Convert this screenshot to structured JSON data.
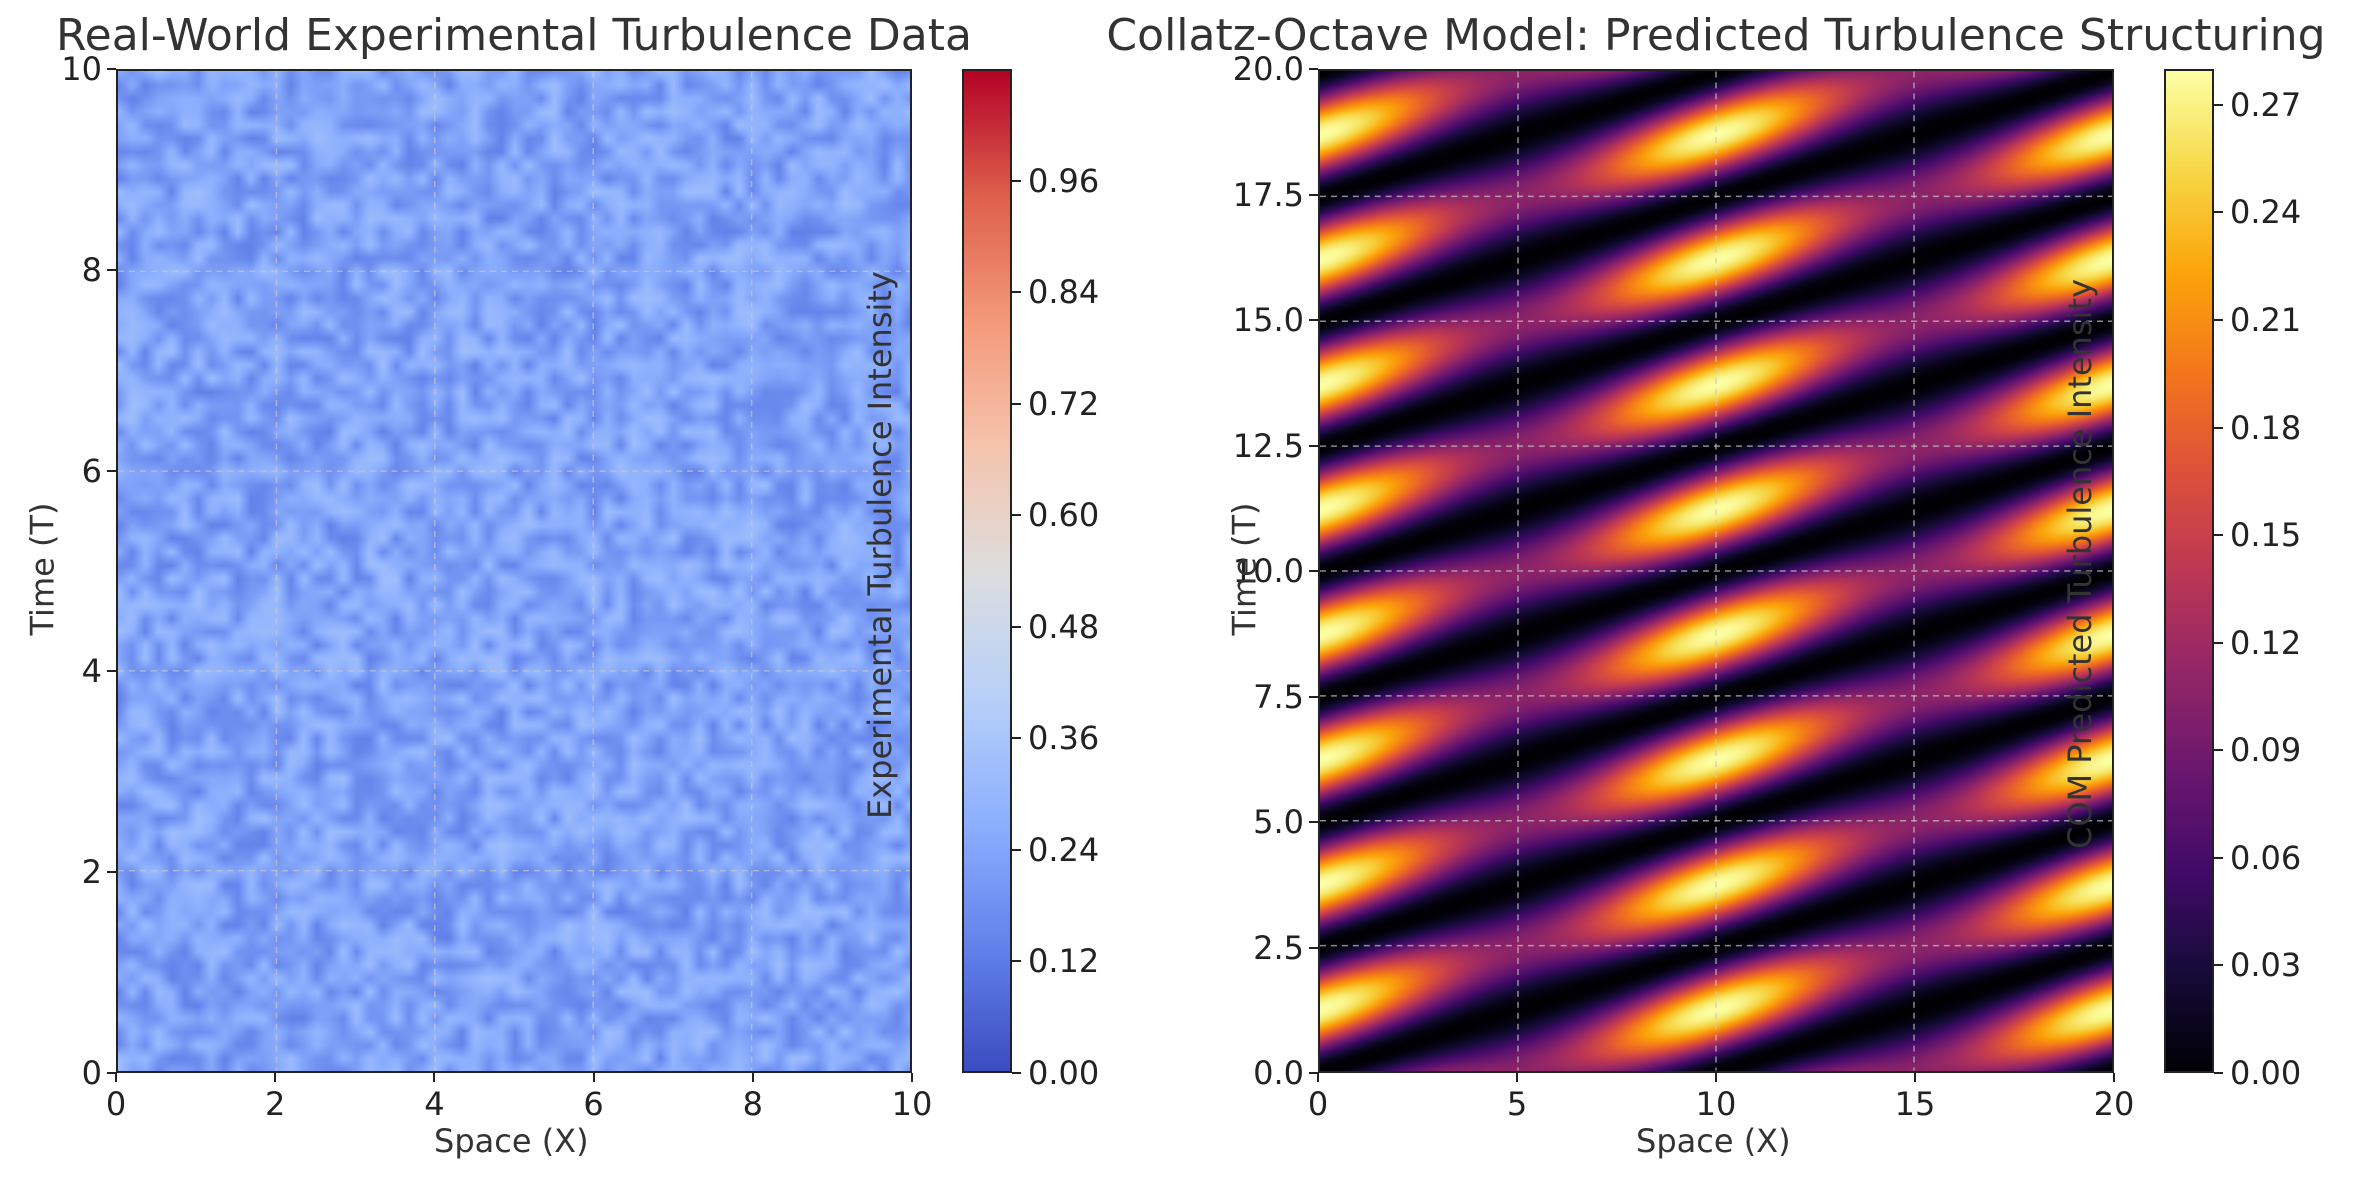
{
  "chart_data": [
    {
      "type": "heatmap",
      "title": "Real-World Experimental Turbulence Data",
      "xlabel": "Space (X)",
      "ylabel": "Time (T)",
      "xlim": [
        0,
        10
      ],
      "ylim": [
        0,
        10
      ],
      "x_ticks": [
        "0",
        "2",
        "4",
        "6",
        "8",
        "10"
      ],
      "y_ticks": [
        "0",
        "2",
        "4",
        "6",
        "8",
        "10"
      ],
      "grid": true,
      "colormap": "coolwarm",
      "colorbar": {
        "label": "Experimental Turbulence Intensity",
        "range": [
          0.0,
          1.08
        ],
        "ticks": [
          "0.00",
          "0.12",
          "0.24",
          "0.36",
          "0.48",
          "0.60",
          "0.72",
          "0.84",
          "0.96"
        ]
      },
      "value_range_observed": [
        0.1,
        0.35
      ]
    },
    {
      "type": "heatmap",
      "title": "Collatz-Octave Model: Predicted Turbulence Structuring",
      "xlabel": "Space (X)",
      "ylabel": "Time (T)",
      "xlim": [
        0,
        20
      ],
      "ylim": [
        0,
        20
      ],
      "x_ticks": [
        "0",
        "5",
        "10",
        "15",
        "20"
      ],
      "y_ticks": [
        "0.0",
        "2.5",
        "5.0",
        "7.5",
        "10.0",
        "12.5",
        "15.0",
        "17.5",
        "20.0"
      ],
      "grid": true,
      "colormap": "inferno",
      "colorbar": {
        "label": "COM Predicted Turbulence Intensity",
        "range": [
          0.0,
          0.28
        ],
        "ticks": [
          "0.00",
          "0.03",
          "0.06",
          "0.09",
          "0.12",
          "0.15",
          "0.18",
          "0.21",
          "0.24",
          "0.27"
        ]
      },
      "value_range_observed": [
        0.0,
        0.28
      ]
    }
  ]
}
